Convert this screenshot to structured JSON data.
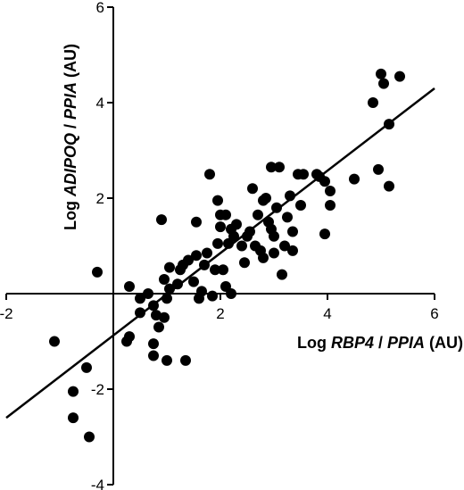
{
  "chart_data": {
    "type": "scatter",
    "x_label_parts": [
      "Log ",
      "RBP4",
      " / ",
      "PPIA",
      " (AU)"
    ],
    "y_label_parts": [
      "Log ",
      "ADIPOQ",
      " / ",
      "PPIA",
      " (AU)"
    ],
    "xlim": [
      -2,
      6
    ],
    "ylim": [
      -4,
      6
    ],
    "x_ticks": [
      -2,
      0,
      2,
      4,
      6
    ],
    "y_ticks": [
      -4,
      -2,
      2,
      4,
      6
    ],
    "x_tick_labels": [
      "-2",
      "",
      "2",
      "4",
      "6"
    ],
    "y_tick_labels": [
      "-4",
      "-2",
      "2",
      "4",
      "6"
    ],
    "grid": false,
    "regression_line": {
      "x": [
        -2.0,
        6.0
      ],
      "y": [
        -2.6,
        4.3
      ]
    },
    "points": [
      {
        "x": -1.1,
        "y": -1.0
      },
      {
        "x": -0.3,
        "y": 0.45
      },
      {
        "x": -0.5,
        "y": -1.55
      },
      {
        "x": -0.75,
        "y": -2.05
      },
      {
        "x": -0.75,
        "y": -2.6
      },
      {
        "x": -0.45,
        "y": -3.0
      },
      {
        "x": 0.25,
        "y": -1.0
      },
      {
        "x": 0.3,
        "y": -0.9
      },
      {
        "x": 0.3,
        "y": 0.15
      },
      {
        "x": 0.5,
        "y": -0.1
      },
      {
        "x": 0.5,
        "y": -0.4
      },
      {
        "x": 0.65,
        "y": 0.0
      },
      {
        "x": 0.75,
        "y": -0.25
      },
      {
        "x": 0.8,
        "y": -0.45
      },
      {
        "x": 0.85,
        "y": -0.7
      },
      {
        "x": 0.9,
        "y": 1.55
      },
      {
        "x": 0.95,
        "y": 0.3
      },
      {
        "x": 0.95,
        "y": -0.5
      },
      {
        "x": 1.0,
        "y": -0.1
      },
      {
        "x": 1.05,
        "y": 0.1
      },
      {
        "x": 1.05,
        "y": 0.55
      },
      {
        "x": 0.75,
        "y": -1.05
      },
      {
        "x": 0.75,
        "y": -1.3
      },
      {
        "x": 1.0,
        "y": -1.4
      },
      {
        "x": 1.2,
        "y": 0.2
      },
      {
        "x": 1.25,
        "y": 0.5
      },
      {
        "x": 1.3,
        "y": 0.6
      },
      {
        "x": 1.35,
        "y": -1.4
      },
      {
        "x": 1.4,
        "y": 0.7
      },
      {
        "x": 1.5,
        "y": 0.25
      },
      {
        "x": 1.55,
        "y": 1.5
      },
      {
        "x": 1.55,
        "y": 0.8
      },
      {
        "x": 1.6,
        "y": -0.1
      },
      {
        "x": 1.65,
        "y": 0.05
      },
      {
        "x": 1.7,
        "y": 0.6
      },
      {
        "x": 1.75,
        "y": 0.85
      },
      {
        "x": 1.8,
        "y": 2.5
      },
      {
        "x": 1.85,
        "y": -0.05
      },
      {
        "x": 1.9,
        "y": 0.5
      },
      {
        "x": 1.95,
        "y": 1.95
      },
      {
        "x": 1.95,
        "y": 1.05
      },
      {
        "x": 2.0,
        "y": 1.65
      },
      {
        "x": 2.0,
        "y": 1.4
      },
      {
        "x": 2.05,
        "y": 0.5
      },
      {
        "x": 2.1,
        "y": 0.15
      },
      {
        "x": 2.1,
        "y": 1.65
      },
      {
        "x": 2.15,
        "y": 1.05
      },
      {
        "x": 2.2,
        "y": 1.35
      },
      {
        "x": 2.2,
        "y": 0.0
      },
      {
        "x": 2.25,
        "y": 1.2
      },
      {
        "x": 2.3,
        "y": 1.45
      },
      {
        "x": 2.4,
        "y": 1.0
      },
      {
        "x": 2.45,
        "y": 0.65
      },
      {
        "x": 2.5,
        "y": 1.2
      },
      {
        "x": 2.55,
        "y": 1.3
      },
      {
        "x": 2.6,
        "y": 2.2
      },
      {
        "x": 2.65,
        "y": 1.0
      },
      {
        "x": 2.7,
        "y": 1.65
      },
      {
        "x": 2.75,
        "y": 0.9
      },
      {
        "x": 2.8,
        "y": 0.75
      },
      {
        "x": 2.8,
        "y": 1.95
      },
      {
        "x": 2.85,
        "y": 2.0
      },
      {
        "x": 2.9,
        "y": 1.5
      },
      {
        "x": 2.95,
        "y": 1.35
      },
      {
        "x": 2.95,
        "y": 2.65
      },
      {
        "x": 3.0,
        "y": 1.2
      },
      {
        "x": 3.0,
        "y": 0.85
      },
      {
        "x": 3.05,
        "y": 1.8
      },
      {
        "x": 3.1,
        "y": 2.65
      },
      {
        "x": 3.15,
        "y": 0.4
      },
      {
        "x": 3.2,
        "y": 1.0
      },
      {
        "x": 3.25,
        "y": 1.6
      },
      {
        "x": 3.3,
        "y": 2.05
      },
      {
        "x": 3.35,
        "y": 0.9
      },
      {
        "x": 3.35,
        "y": 1.3
      },
      {
        "x": 3.45,
        "y": 2.5
      },
      {
        "x": 3.5,
        "y": 1.85
      },
      {
        "x": 3.55,
        "y": 2.5
      },
      {
        "x": 3.8,
        "y": 2.5
      },
      {
        "x": 3.85,
        "y": 2.45
      },
      {
        "x": 3.95,
        "y": 1.25
      },
      {
        "x": 3.95,
        "y": 2.35
      },
      {
        "x": 4.05,
        "y": 2.15
      },
      {
        "x": 4.05,
        "y": 1.85
      },
      {
        "x": 4.5,
        "y": 2.4
      },
      {
        "x": 4.85,
        "y": 4.0
      },
      {
        "x": 4.95,
        "y": 2.6
      },
      {
        "x": 5.0,
        "y": 4.6
      },
      {
        "x": 5.05,
        "y": 4.4
      },
      {
        "x": 5.15,
        "y": 3.55
      },
      {
        "x": 5.15,
        "y": 2.25
      },
      {
        "x": 5.35,
        "y": 4.55
      }
    ]
  }
}
